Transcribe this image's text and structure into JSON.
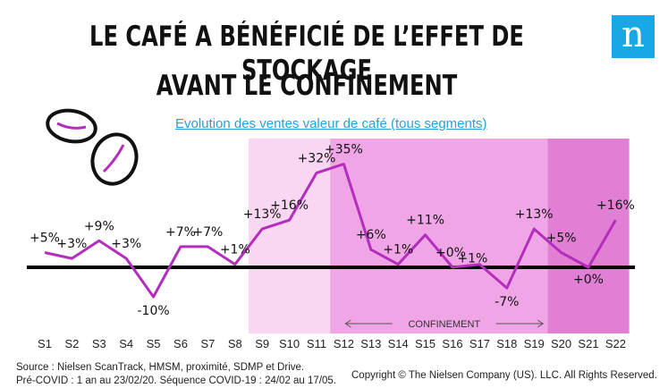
{
  "header": {
    "title_line1": "LE CAFÉ A BÉNÉFICIÉ DE L’EFFET DE STOCKAGE",
    "title_line2": "AVANT LE CONFINEMENT",
    "logo_letter": "n"
  },
  "chart_data": {
    "type": "line",
    "title": "",
    "subtitle": "Evolution des ventes valeur de café (tous segments)",
    "categories": [
      "S1",
      "S2",
      "S3",
      "S4",
      "S5",
      "S6",
      "S7",
      "S8",
      "S9",
      "S10",
      "S11",
      "S12",
      "S13",
      "S14",
      "S15",
      "S16",
      "S17",
      "S18",
      "S19",
      "S20",
      "S21",
      "S22"
    ],
    "series": [
      {
        "values": [
          5,
          3,
          9,
          3,
          -10,
          7,
          7,
          1,
          13,
          16,
          32,
          35,
          6,
          1,
          11,
          0,
          1,
          -7,
          13,
          5,
          0,
          16
        ]
      }
    ],
    "data_labels": [
      "+5%",
      "+3%",
      "+9%",
      "+3%",
      "-10%",
      "+7%",
      "+7%",
      "+1%",
      "+13%",
      "+16%",
      "+32%",
      "+35%",
      "+6%",
      "+1%",
      "+11%",
      "+0%",
      "+1%",
      "-7%",
      "+13%",
      "+5%",
      "+0%",
      "+16%"
    ],
    "ylim": [
      -18,
      40
    ],
    "zero_line": true,
    "grid": false,
    "periods": [
      {
        "from": "S9",
        "to": "S11",
        "color": "#f9d6f1"
      },
      {
        "from": "S12",
        "to": "S19",
        "color": "#f0a6e6",
        "label": "CONFINEMENT"
      },
      {
        "from": "S20",
        "to": "S22",
        "color": "#e17fd4"
      }
    ],
    "line_color": "#b42dbd"
  },
  "footer": {
    "source_line1": "Source : Nielsen ScanTrack, HMSM, proximité, SDMP et Drive.",
    "source_line2": "Pré-COVID : 1 an au 23/02/20. Séquence COVID-19 : 24/02 au 17/05.",
    "copyright": "Copyright © The Nielsen Company (US). LLC. All Rights Reserved."
  }
}
